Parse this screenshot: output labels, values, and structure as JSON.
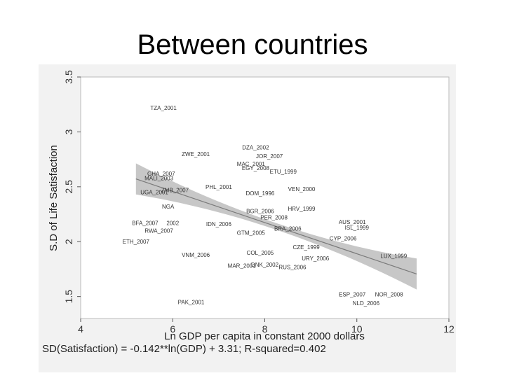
{
  "slide": {
    "title": "Between countries"
  },
  "chart_data": {
    "type": "scatter",
    "xlabel": "Ln GDP per capita in constant 2000 dollars",
    "ylabel": "S.D of Life Satisfaction",
    "xlim": [
      4,
      12
    ],
    "ylim": [
      1.3,
      3.5
    ],
    "xticks": [
      4,
      6,
      8,
      10,
      12
    ],
    "yticks": [
      1.5,
      2,
      2.5,
      3,
      3.5
    ],
    "grid": false,
    "equation": "SD(Satisfaction) = -0.142**ln(GDP) + 3.31; R-squared=0.402",
    "fit": {
      "slope": -0.142,
      "intercept": 3.31,
      "x_range": [
        5.2,
        11.3
      ]
    },
    "points": [
      {
        "label": "TZA_2001",
        "x": 5.8,
        "y": 3.22
      },
      {
        "label": "ZWE_2001",
        "x": 6.5,
        "y": 2.8
      },
      {
        "label": "GHA_2007",
        "x": 5.75,
        "y": 2.62
      },
      {
        "label": "MALI_2003",
        "x": 5.7,
        "y": 2.58
      },
      {
        "label": "UGA_2001",
        "x": 5.6,
        "y": 2.45
      },
      {
        "label": "ZMB_2007",
        "x": 6.05,
        "y": 2.47
      },
      {
        "label": "PHL_2001",
        "x": 7.0,
        "y": 2.5
      },
      {
        "label": "NGA",
        "x": 5.9,
        "y": 2.32
      },
      {
        "label": "BFA_2007",
        "x": 5.4,
        "y": 2.17
      },
      {
        "label": "2002",
        "x": 6.0,
        "y": 2.17
      },
      {
        "label": "RWA_2007",
        "x": 5.7,
        "y": 2.1
      },
      {
        "label": "ETH_2007",
        "x": 5.2,
        "y": 2.0
      },
      {
        "label": "VNM_2006",
        "x": 6.5,
        "y": 1.88
      },
      {
        "label": "PAK_2001",
        "x": 6.4,
        "y": 1.45
      },
      {
        "label": "DZA_2002",
        "x": 7.8,
        "y": 2.86
      },
      {
        "label": "JOR_2007",
        "x": 8.1,
        "y": 2.78
      },
      {
        "label": "MAC_2001",
        "x": 7.7,
        "y": 2.71
      },
      {
        "label": "EGY_2008",
        "x": 7.8,
        "y": 2.67
      },
      {
        "label": "ETU_1999",
        "x": 8.4,
        "y": 2.64
      },
      {
        "label": "DOM_1996",
        "x": 7.9,
        "y": 2.44
      },
      {
        "label": "VEN_2000",
        "x": 8.8,
        "y": 2.48
      },
      {
        "label": "IDN_2006",
        "x": 7.0,
        "y": 2.16
      },
      {
        "label": "GTM_2005",
        "x": 7.7,
        "y": 2.08
      },
      {
        "label": "BGR_2006",
        "x": 7.9,
        "y": 2.28
      },
      {
        "label": "HRV_1999",
        "x": 8.8,
        "y": 2.3
      },
      {
        "label": "PER_2008",
        "x": 8.2,
        "y": 2.22
      },
      {
        "label": "BRA_2006",
        "x": 8.5,
        "y": 2.12
      },
      {
        "label": "COL_2005",
        "x": 7.9,
        "y": 1.9
      },
      {
        "label": "MAR_2001",
        "x": 7.5,
        "y": 1.78
      },
      {
        "label": "DNK_2002",
        "x": 8.0,
        "y": 1.79
      },
      {
        "label": "RUS_2006",
        "x": 8.6,
        "y": 1.77
      },
      {
        "label": "CZE_1999",
        "x": 8.9,
        "y": 1.95
      },
      {
        "label": "URY_2006",
        "x": 9.1,
        "y": 1.85
      },
      {
        "label": "CYP_2006",
        "x": 9.7,
        "y": 2.03
      },
      {
        "label": "ISL_1999",
        "x": 10.0,
        "y": 2.13
      },
      {
        "label": "AUS_2001",
        "x": 9.9,
        "y": 2.18
      },
      {
        "label": "LUX_1999",
        "x": 10.8,
        "y": 1.87
      },
      {
        "label": "ESP_2007",
        "x": 9.9,
        "y": 1.52
      },
      {
        "label": "NOR_2008",
        "x": 10.7,
        "y": 1.52
      },
      {
        "label": "NLD_2006",
        "x": 10.2,
        "y": 1.44
      }
    ]
  }
}
